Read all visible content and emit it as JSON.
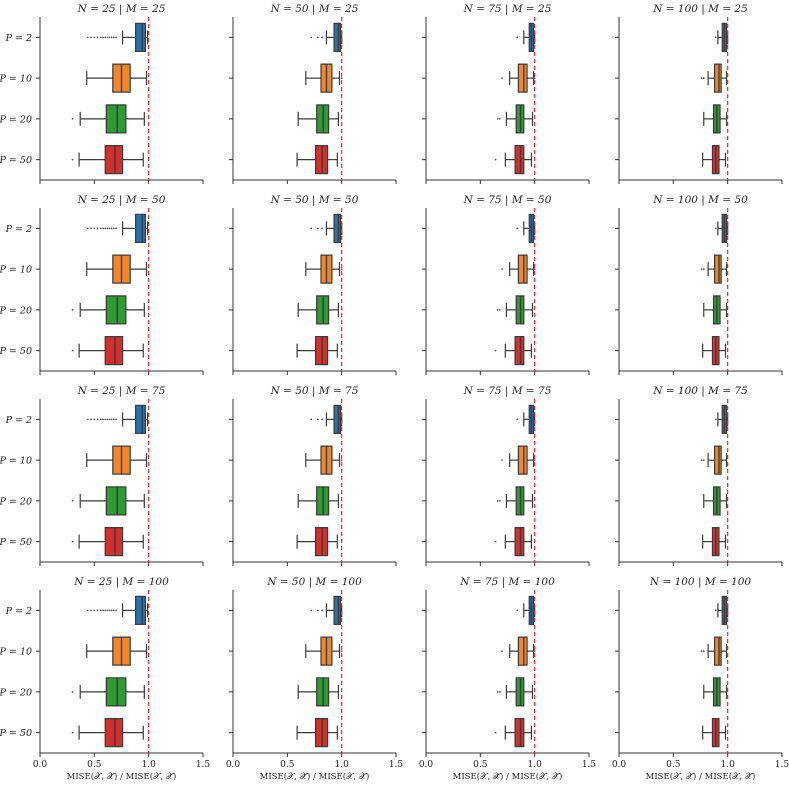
{
  "chart_data": {
    "type": "boxplot-grid",
    "xlabel": "MISE(𝒳, 𝒳̃) / MISE(𝒳, 𝒳̃)",
    "xlim": [
      0.0,
      1.5
    ],
    "xticks": [
      "0.0",
      "0.5",
      "1.0",
      "1.5"
    ],
    "reference_line": 1.0,
    "categories": [
      "P = 2",
      "P = 10",
      "P = 20",
      "P = 50"
    ],
    "colors": [
      "#2a73b0",
      "#f0882a",
      "#2f9a32",
      "#d2302e"
    ],
    "reference_color": "#e8242a",
    "panel_titles": [
      [
        "N = 25 | M = 25",
        "N = 50 | M = 25",
        "N = 75 | M = 25",
        "N = 100 | M = 25"
      ],
      [
        "N = 25 | M = 50",
        "N = 50 | M = 50",
        "N = 75 | M = 50",
        "N = 100 | M = 50"
      ],
      [
        "N = 25 | M = 75",
        "N = 50 | M = 75",
        "N = 75 | M = 75",
        "N = 100 | M = 75"
      ],
      [
        "N = 25 | M = 100",
        "N = 50 | M = 100",
        "N = 75 | M = 100",
        "N = 100 | M = 100"
      ]
    ],
    "boxes_by_N": {
      "N = 25": [
        {
          "wlo": 0.76,
          "q1": 0.88,
          "med": 0.94,
          "q3": 0.97,
          "whi": 0.99,
          "fliers": [
            0.44,
            0.47,
            0.5,
            0.53,
            0.56,
            0.58,
            0.6,
            0.62,
            0.64,
            0.66,
            0.68,
            0.7
          ]
        },
        {
          "wlo": 0.43,
          "q1": 0.67,
          "med": 0.75,
          "q3": 0.83,
          "whi": 0.98,
          "fliers": []
        },
        {
          "wlo": 0.37,
          "q1": 0.61,
          "med": 0.71,
          "q3": 0.79,
          "whi": 0.96,
          "fliers": [
            0.3
          ]
        },
        {
          "wlo": 0.36,
          "q1": 0.6,
          "med": 0.69,
          "q3": 0.76,
          "whi": 0.95,
          "fliers": [
            0.3
          ]
        }
      ],
      "N = 50": [
        {
          "wlo": 0.86,
          "q1": 0.93,
          "med": 0.97,
          "q3": 0.99,
          "whi": 1.0,
          "fliers": [
            0.72,
            0.78,
            0.82
          ]
        },
        {
          "wlo": 0.67,
          "q1": 0.81,
          "med": 0.86,
          "q3": 0.91,
          "whi": 0.98,
          "fliers": [
            1.0
          ]
        },
        {
          "wlo": 0.6,
          "q1": 0.77,
          "med": 0.83,
          "q3": 0.88,
          "whi": 0.97,
          "fliers": []
        },
        {
          "wlo": 0.59,
          "q1": 0.76,
          "med": 0.82,
          "q3": 0.87,
          "whi": 0.96,
          "fliers": []
        }
      ],
      "N = 75": [
        {
          "wlo": 0.9,
          "q1": 0.95,
          "med": 0.97,
          "q3": 0.99,
          "whi": 1.0,
          "fliers": [
            0.84
          ]
        },
        {
          "wlo": 0.77,
          "q1": 0.85,
          "med": 0.9,
          "q3": 0.93,
          "whi": 0.99,
          "fliers": [
            0.7,
            1.0
          ]
        },
        {
          "wlo": 0.74,
          "q1": 0.83,
          "med": 0.87,
          "q3": 0.9,
          "whi": 0.98,
          "fliers": [
            0.66,
            0.68
          ]
        },
        {
          "wlo": 0.73,
          "q1": 0.82,
          "med": 0.87,
          "q3": 0.9,
          "whi": 0.97,
          "fliers": [
            0.64
          ]
        }
      ],
      "N = 100": [
        {
          "wlo": 0.91,
          "q1": 0.95,
          "med": 0.97,
          "q3": 0.99,
          "whi": 1.0,
          "fliers": [
            0.89
          ]
        },
        {
          "wlo": 0.82,
          "q1": 0.88,
          "med": 0.92,
          "q3": 0.94,
          "whi": 0.99,
          "fliers": [
            0.76,
            0.78
          ]
        },
        {
          "wlo": 0.78,
          "q1": 0.87,
          "med": 0.9,
          "q3": 0.93,
          "whi": 0.99,
          "fliers": []
        },
        {
          "wlo": 0.77,
          "q1": 0.86,
          "med": 0.89,
          "q3": 0.92,
          "whi": 0.98,
          "fliers": []
        }
      ]
    }
  }
}
